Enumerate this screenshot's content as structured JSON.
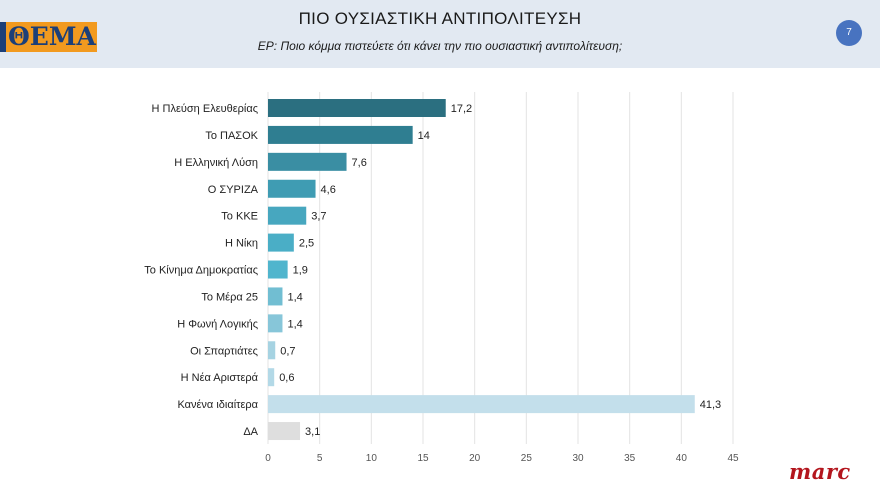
{
  "header": {
    "logo_text": "ΘΕΜΑ",
    "title": "ΠΙΟ ΟΥΣΙΑΣΤΙΚΗ ΑΝΤΙΠΟΛΙΤΕΥΣΗ",
    "subtitle": "ΕΡ: Ποιο κόμμα πιστεύετε ότι κάνει την πιο ουσιαστική αντιπολίτευση;",
    "page_number": "7"
  },
  "footer": {
    "brand": "marc"
  },
  "chart_data": {
    "type": "bar",
    "orientation": "horizontal",
    "title": "ΠΙΟ ΟΥΣΙΑΣΤΙΚΗ ΑΝΤΙΠΟΛΙΤΕΥΣΗ",
    "categories": [
      "Η Πλεύση Ελευθερίας",
      "Το ΠΑΣΟΚ",
      "Η Ελληνική Λύση",
      "Ο ΣΥΡΙΖΑ",
      "Το ΚΚΕ",
      "Η Νίκη",
      "Το Κίνημα Δημοκρατίας",
      "Το Μέρα 25",
      "Η Φωνή Λογικής",
      "Οι Σπαρτιάτες",
      "Η Νέα Αριστερά",
      "Κανένα ιδιαίτερα",
      "ΔΑ"
    ],
    "values": [
      17.2,
      14,
      7.6,
      4.6,
      3.7,
      2.5,
      1.9,
      1.4,
      1.4,
      0.7,
      0.6,
      41.3,
      3.1
    ],
    "value_labels": [
      "17,2",
      "14",
      "7,6",
      "4,6",
      "3,7",
      "2,5",
      "1,9",
      "1,4",
      "1,4",
      "0,7",
      "0,6",
      "41,3",
      "3,1"
    ],
    "colors": [
      "#2b6f80",
      "#2f7e91",
      "#3a8ea3",
      "#3f9cb3",
      "#47a7bf",
      "#4aaec6",
      "#50b5cd",
      "#71bed2",
      "#87c6d9",
      "#a6d3e2",
      "#b3d9e7",
      "#c3dfeb",
      "#dedede"
    ],
    "xticks": [
      0,
      5,
      10,
      15,
      20,
      25,
      30,
      35,
      40,
      45
    ],
    "xlim": [
      0,
      45
    ],
    "grid": true,
    "xlabel": "",
    "ylabel": ""
  }
}
